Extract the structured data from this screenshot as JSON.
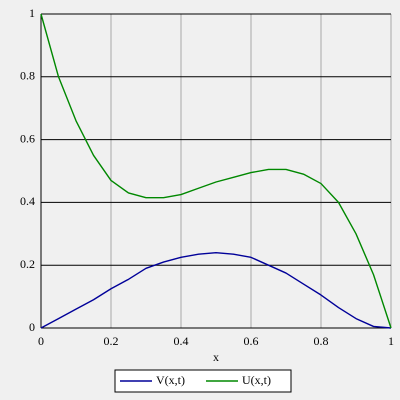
{
  "chart_data": {
    "type": "line",
    "xlabel": "x",
    "x": [
      0,
      0.05,
      0.1,
      0.15,
      0.2,
      0.25,
      0.3,
      0.35,
      0.4,
      0.45,
      0.5,
      0.55,
      0.6,
      0.65,
      0.7,
      0.75,
      0.8,
      0.85,
      0.9,
      0.95,
      1
    ],
    "series": [
      {
        "name": "V(x,t)",
        "color": "#000099",
        "values": [
          0,
          0.03,
          0.06,
          0.09,
          0.125,
          0.155,
          0.19,
          0.21,
          0.225,
          0.235,
          0.24,
          0.235,
          0.225,
          0.2,
          0.175,
          0.14,
          0.105,
          0.065,
          0.03,
          0.005,
          0
        ]
      },
      {
        "name": "U(x,t)",
        "color": "#008800",
        "values": [
          1,
          0.8,
          0.66,
          0.55,
          0.47,
          0.43,
          0.415,
          0.415,
          0.425,
          0.445,
          0.465,
          0.48,
          0.495,
          0.505,
          0.505,
          0.49,
          0.46,
          0.4,
          0.3,
          0.17,
          0
        ]
      }
    ],
    "xlim": [
      0,
      1
    ],
    "ylim": [
      0,
      1
    ],
    "xticks": [
      0,
      0.2,
      0.4,
      0.6,
      0.8,
      1
    ],
    "yticks": [
      0,
      0.2,
      0.4,
      0.6,
      0.8,
      1
    ],
    "grid": true,
    "legend": "bottom"
  }
}
